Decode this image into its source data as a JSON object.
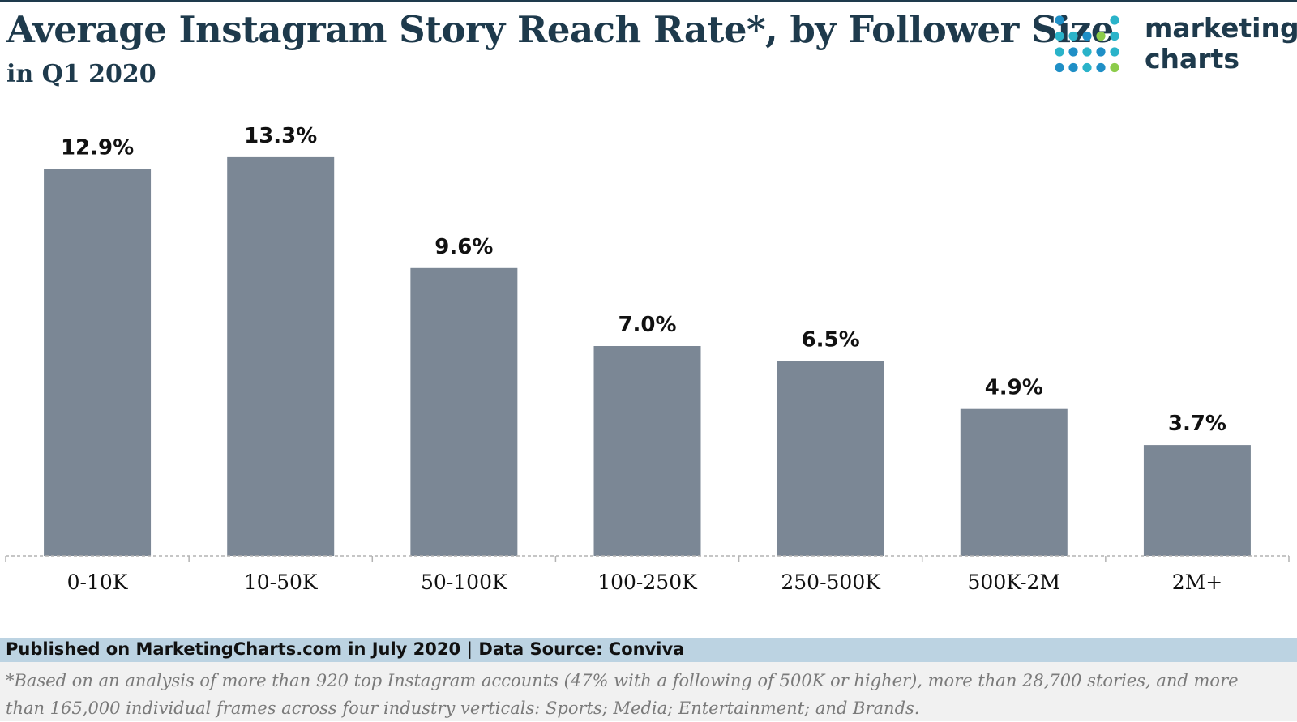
{
  "header": {
    "title": "Average Instagram Story Reach Rate*, by Follower Size",
    "subtitle": "in Q1 2020"
  },
  "logo": {
    "line1": "marketing",
    "line2": "charts"
  },
  "footer": {
    "published": "Published on MarketingCharts.com in July 2020 | Data Source: Conviva",
    "footnote": "*Based on an analysis of more than 920 top Instagram accounts (47% with a following of 500K or higher), more than 28,700 stories, and more than 165,000 individual frames across four industry verticals: Sports; Media; Entertainment; and Brands."
  },
  "colors": {
    "bar": "#7b8795",
    "title": "#1e3a4c",
    "axis": "#b3b3b3",
    "logo_teal": "#2ab3c9",
    "logo_green": "#8ccc4a",
    "logo_blue": "#1f8fc6"
  },
  "chart_data": {
    "type": "bar",
    "title": "Average Instagram Story Reach Rate*, by Follower Size",
    "subtitle": "in Q1 2020",
    "categories": [
      "0-10K",
      "10-50K",
      "50-100K",
      "100-250K",
      "250-500K",
      "500K-2M",
      "2M+"
    ],
    "values": [
      12.9,
      13.3,
      9.6,
      7.0,
      6.5,
      4.9,
      3.7
    ],
    "labels": [
      "12.9%",
      "13.3%",
      "9.6%",
      "7.0%",
      "6.5%",
      "4.9%",
      "3.7%"
    ],
    "xlabel": "",
    "ylabel": "",
    "ylim": [
      0,
      14
    ],
    "grid": false,
    "legend": "none"
  }
}
